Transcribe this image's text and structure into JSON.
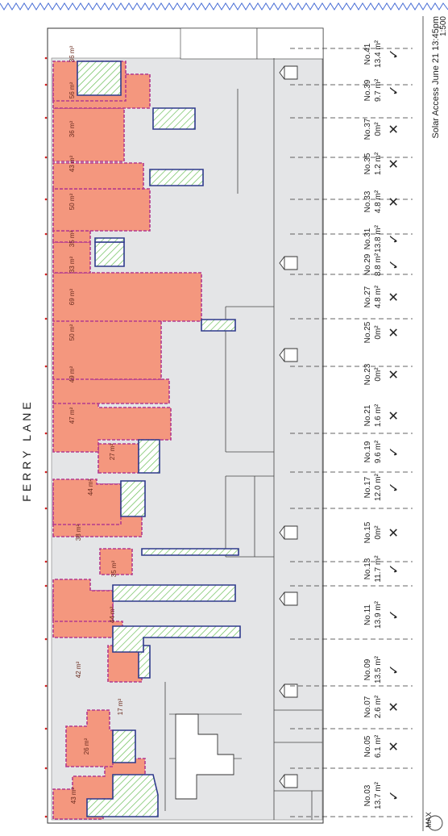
{
  "street": {
    "name": "FERRY LANE"
  },
  "footer": {
    "title": "Solar Access June 21 13:45pm",
    "scale": "1:500"
  },
  "north_arrow": {
    "label": "MAX"
  },
  "colors": {
    "shadow_fill": "#f4977e",
    "shadow_outline": "#b33a8e",
    "open_space_outline": "#2e3a8c",
    "hatch": "#6cbf5a",
    "building_fill": "#e4e5e7",
    "border_zigzag": "#4a6fd6",
    "marker": "#d62020"
  },
  "houses": [
    {
      "id": "No.03",
      "area": "13.7 m²",
      "result": "✓",
      "shadow_area": "43 m²"
    },
    {
      "id": "No.05",
      "area": "6.1 m²",
      "result": "✕",
      "shadow_area": "26 m²"
    },
    {
      "id": "No.07",
      "area": "2.6 m²",
      "result": "✕",
      "shadow_area": "17 m²"
    },
    {
      "id": "No.09",
      "area": "13.5 m²",
      "result": "✓",
      "shadow_area": "42 m²"
    },
    {
      "id": "No.11",
      "area": "13.9 m²",
      "result": "✓",
      "shadow_area": "44 m²"
    },
    {
      "id": "No.13",
      "area": "11.7 m²",
      "result": "✓",
      "shadow_area": "35 m²"
    },
    {
      "id": "No.15",
      "area": "0m²",
      "result": "✕",
      "shadow_area": "38 m²"
    },
    {
      "id": "No.17",
      "area": "12.0 m²",
      "result": "✓",
      "shadow_area": "44 m²"
    },
    {
      "id": "No.19",
      "area": "9.6 m²",
      "result": "✓",
      "shadow_area": "27 m²"
    },
    {
      "id": "No.21",
      "area": "1.6 m²",
      "result": "✕",
      "shadow_area": "47 m²"
    },
    {
      "id": "No.23",
      "area": "0m²",
      "result": "✕",
      "shadow_area": "49 m²"
    },
    {
      "id": "No.25",
      "area": "0m²",
      "result": "✕",
      "shadow_area": "50 m²"
    },
    {
      "id": "No.27",
      "area": "4.8 m²",
      "result": "✕",
      "shadow_area": "69 m²"
    },
    {
      "id": "No.29",
      "area": "8.8 m²",
      "result": "✓",
      "shadow_area": "33 m²"
    },
    {
      "id": "No.31",
      "area": "13.8 m²",
      "result": "✓",
      "shadow_area": "35 m²"
    },
    {
      "id": "No.33",
      "area": "4.8 m²",
      "result": "✕",
      "shadow_area": "50 m²"
    },
    {
      "id": "No.35",
      "area": "1.2 m²",
      "result": "✕",
      "shadow_area": "43 m²"
    },
    {
      "id": "No.37",
      "area": "0m²",
      "result": "✕",
      "shadow_area": "36 m²"
    },
    {
      "id": "No.39",
      "area": "9.7 m²",
      "result": "✓",
      "shadow_area": "56 m²"
    },
    {
      "id": "No.41",
      "area": "13.4 m²",
      "result": "✓",
      "shadow_area": "36 m²"
    }
  ]
}
